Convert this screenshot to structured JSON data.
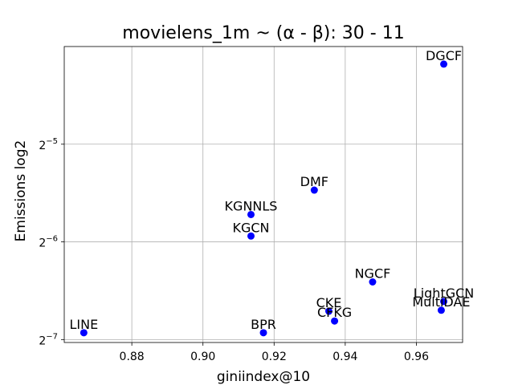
{
  "chart_data": {
    "type": "scatter",
    "title": "movielens_1m ~ (α - β): 30 - 11",
    "xlabel": "giniindex@10",
    "ylabel": "Emissions log2",
    "y_scale": "log2",
    "xlim": [
      0.861,
      0.973
    ],
    "ylim_log2": [
      -7.03,
      -4.0
    ],
    "x_ticks": [
      0.88,
      0.9,
      0.92,
      0.94,
      0.96
    ],
    "x_tick_labels": [
      "0.88",
      "0.90",
      "0.92",
      "0.94",
      "0.96"
    ],
    "y_ticks_log2": [
      -7,
      -6,
      -5
    ],
    "y_tick_labels": [
      {
        "base": "2",
        "exp": "−7"
      },
      {
        "base": "2",
        "exp": "−6"
      },
      {
        "base": "2",
        "exp": "−5"
      }
    ],
    "grid": true,
    "marker_color": "#0000ff",
    "points": [
      {
        "label": "DGCF",
        "x": 0.9677,
        "y_log2": -4.18
      },
      {
        "label": "DMF",
        "x": 0.9313,
        "y_log2": -5.47
      },
      {
        "label": "KGNNLS",
        "x": 0.9135,
        "y_log2": -5.72
      },
      {
        "label": "KGCN",
        "x": 0.9135,
        "y_log2": -5.94
      },
      {
        "label": "NGCF",
        "x": 0.9477,
        "y_log2": -6.41
      },
      {
        "label": "LightGCN",
        "x": 0.9677,
        "y_log2": -6.61
      },
      {
        "label": "MultiDAE",
        "x": 0.967,
        "y_log2": -6.7
      },
      {
        "label": "CKE",
        "x": 0.9354,
        "y_log2": -6.71
      },
      {
        "label": "CFKG",
        "x": 0.937,
        "y_log2": -6.81
      },
      {
        "label": "BPR",
        "x": 0.917,
        "y_log2": -6.93
      },
      {
        "label": "LINE",
        "x": 0.8665,
        "y_log2": -6.93
      }
    ]
  }
}
